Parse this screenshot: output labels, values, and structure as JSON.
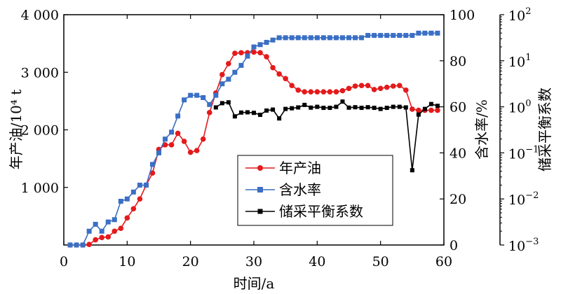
{
  "chart_data": {
    "type": "line",
    "x_axis": {
      "label": "时间/a",
      "range": [
        0,
        60
      ],
      "ticks": [
        0,
        10,
        20,
        30,
        40,
        50,
        60
      ],
      "tick_labels": [
        "0",
        "10",
        "20",
        "30",
        "40",
        "50",
        "60"
      ]
    },
    "y_axis_left": {
      "label": "年产油/10⁴ t",
      "range": [
        0,
        4000
      ],
      "ticks": [
        1000,
        2000,
        3000,
        4000
      ],
      "tick_labels": [
        "1 000",
        "2 000",
        "3 000",
        "4 000"
      ]
    },
    "y_axis_right": {
      "label": "含水率/%",
      "range": [
        0,
        100
      ],
      "ticks": [
        0,
        20,
        40,
        60,
        80,
        100
      ],
      "tick_labels": [
        "0",
        "20",
        "40",
        "60",
        "80",
        "100"
      ]
    },
    "y_axis_log": {
      "label": "储采平衡系数",
      "scale": "log",
      "range": [
        0.001,
        100
      ],
      "ticks": [
        0.001,
        0.01,
        0.1,
        1,
        10,
        100
      ],
      "tick_labels": [
        {
          "base": "10",
          "exp": "−3"
        },
        {
          "base": "10",
          "exp": "−2"
        },
        {
          "base": "10",
          "exp": "−1"
        },
        {
          "base": "10",
          "exp": "0"
        },
        {
          "base": "10",
          "exp": "1"
        },
        {
          "base": "10",
          "exp": "2"
        }
      ]
    },
    "legend": {
      "position": "center-right",
      "entries": [
        "年产油",
        "含水率",
        "储采平衡系数"
      ]
    },
    "grid": false,
    "series": [
      {
        "name": "年产油",
        "axis": "left",
        "color": "#e41a1c",
        "marker": "circle",
        "x": [
          1,
          2,
          3,
          4,
          5,
          6,
          7,
          8,
          9,
          10,
          11,
          12,
          13,
          14,
          15,
          16,
          17,
          18,
          19,
          20,
          21,
          22,
          23,
          24,
          25,
          26,
          27,
          28,
          29,
          30,
          31,
          32,
          33,
          34,
          35,
          36,
          37,
          38,
          39,
          40,
          41,
          42,
          43,
          44,
          45,
          46,
          47,
          48,
          49,
          50,
          51,
          52,
          53,
          54,
          55,
          56,
          57,
          58,
          59
        ],
        "y": [
          0,
          0,
          0,
          10,
          90,
          130,
          140,
          240,
          290,
          470,
          630,
          800,
          1040,
          1250,
          1660,
          1740,
          1740,
          1940,
          1800,
          1610,
          1640,
          1840,
          2300,
          2640,
          2960,
          3150,
          3330,
          3340,
          3340,
          3350,
          3340,
          3270,
          3080,
          2970,
          2890,
          2770,
          2690,
          2660,
          2660,
          2660,
          2660,
          2660,
          2660,
          2680,
          2720,
          2760,
          2770,
          2770,
          2700,
          2720,
          2740,
          2760,
          2770,
          2690,
          2360,
          2340,
          2340,
          2340,
          2340
        ]
      },
      {
        "name": "含水率",
        "axis": "right",
        "color": "#3a6fc4",
        "marker": "square",
        "x": [
          1,
          2,
          3,
          4,
          5,
          6,
          7,
          8,
          9,
          10,
          11,
          12,
          13,
          14,
          15,
          16,
          17,
          18,
          19,
          20,
          21,
          22,
          23,
          24,
          25,
          26,
          27,
          28,
          29,
          30,
          31,
          32,
          33,
          34,
          35,
          36,
          37,
          38,
          39,
          40,
          41,
          42,
          43,
          44,
          45,
          46,
          47,
          48,
          49,
          50,
          51,
          52,
          53,
          54,
          55,
          56,
          57,
          58,
          59
        ],
        "y": [
          0,
          0,
          0,
          6,
          9,
          6,
          10,
          11,
          19,
          20,
          23,
          26,
          26,
          35,
          40,
          46,
          49,
          56,
          63,
          65,
          65,
          64,
          61,
          65,
          70,
          72,
          75,
          78,
          82,
          86,
          87,
          88,
          89,
          90,
          90,
          90,
          90,
          90,
          90,
          90,
          90,
          90,
          90,
          90,
          90,
          90,
          90,
          91,
          91,
          91,
          91,
          91,
          91,
          91,
          91,
          92,
          92,
          92,
          92
        ]
      },
      {
        "name": "储采平衡系数",
        "axis": "log",
        "color": "#000000",
        "marker": "square",
        "x": [
          24,
          25,
          26,
          27,
          28,
          29,
          30,
          31,
          32,
          33,
          34,
          35,
          36,
          37,
          38,
          39,
          40,
          41,
          42,
          43,
          44,
          45,
          46,
          47,
          48,
          49,
          50,
          51,
          52,
          53,
          54,
          55,
          56,
          57,
          58,
          59
        ],
        "y": [
          0.97,
          1.2,
          1.25,
          0.62,
          0.75,
          0.76,
          0.74,
          0.67,
          0.83,
          0.87,
          0.56,
          0.9,
          0.93,
          0.97,
          1.1,
          0.96,
          1.0,
          0.95,
          0.95,
          1.0,
          1.3,
          0.96,
          0.98,
          0.95,
          0.98,
          0.95,
          0.9,
          0.95,
          1.0,
          1.0,
          0.97,
          0.042,
          0.68,
          0.9,
          1.15,
          1.05
        ]
      }
    ]
  }
}
